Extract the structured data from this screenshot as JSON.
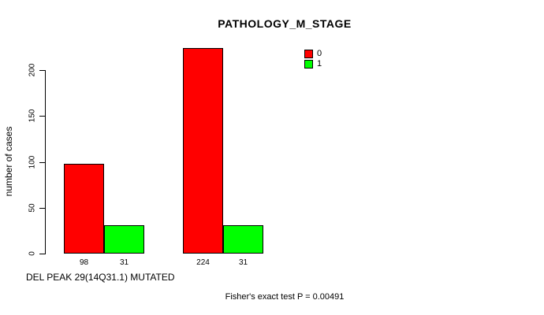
{
  "chart_data": {
    "type": "bar",
    "title": "PATHOLOGY_M_STAGE",
    "ylabel": "number of cases",
    "xlabel": "DEL PEAK 29(14Q31.1) MUTATED",
    "annotation": "Fisher's exact test P = 0.00491",
    "ylim": [
      0,
      230
    ],
    "yticks": [
      0,
      50,
      100,
      150,
      200
    ],
    "grid": false,
    "legend_position": "top-right",
    "series": [
      {
        "name": "0",
        "color": "#ff0000",
        "values": [
          98,
          224
        ]
      },
      {
        "name": "1",
        "color": "#00ff00",
        "values": [
          31,
          31
        ]
      }
    ],
    "bar_value_labels": [
      [
        "98",
        "31"
      ],
      [
        "224",
        "31"
      ]
    ]
  },
  "colors": {
    "background": "#ffffff",
    "axis": "#000000",
    "text": "#000000"
  }
}
